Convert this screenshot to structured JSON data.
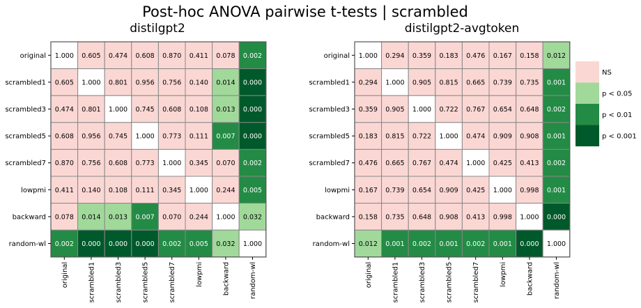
{
  "title": "Post-hoc ANOVA pairwise t-tests | scrambled",
  "chart_data": [
    {
      "type": "heatmap",
      "title": "distilgpt2",
      "rows": [
        "original",
        "scrambled1",
        "scrambled3",
        "scrambled5",
        "scrambled7",
        "lowpmi",
        "backward",
        "random-wl"
      ],
      "cols": [
        "original",
        "scrambled1",
        "scrambled3",
        "scrambled5",
        "scrambled7",
        "lowpmi",
        "backward",
        "random-wl"
      ],
      "values": [
        [
          1.0,
          0.605,
          0.474,
          0.608,
          0.87,
          0.411,
          0.078,
          0.002
        ],
        [
          0.605,
          1.0,
          0.801,
          0.956,
          0.756,
          0.14,
          0.014,
          0.0
        ],
        [
          0.474,
          0.801,
          1.0,
          0.745,
          0.608,
          0.108,
          0.013,
          0.0
        ],
        [
          0.608,
          0.956,
          0.745,
          1.0,
          0.773,
          0.111,
          0.007,
          0.0
        ],
        [
          0.87,
          0.756,
          0.608,
          0.773,
          1.0,
          0.345,
          0.07,
          0.002
        ],
        [
          0.411,
          0.14,
          0.108,
          0.111,
          0.345,
          1.0,
          0.244,
          0.005
        ],
        [
          0.078,
          0.014,
          0.013,
          0.007,
          0.07,
          0.244,
          1.0,
          0.032
        ],
        [
          0.002,
          0.0,
          0.0,
          0.0,
          0.002,
          0.005,
          0.032,
          1.0
        ]
      ],
      "labels": [
        [
          "1.000",
          "0.605",
          "0.474",
          "0.608",
          "0.870",
          "0.411",
          "0.078",
          "0.002"
        ],
        [
          "0.605",
          "1.000",
          "0.801",
          "0.956",
          "0.756",
          "0.140",
          "0.014",
          "0.000"
        ],
        [
          "0.474",
          "0.801",
          "1.000",
          "0.745",
          "0.608",
          "0.108",
          "0.013",
          "0.000"
        ],
        [
          "0.608",
          "0.956",
          "0.745",
          "1.000",
          "0.773",
          "0.111",
          "0.007",
          "0.000"
        ],
        [
          "0.870",
          "0.756",
          "0.608",
          "0.773",
          "1.000",
          "0.345",
          "0.070",
          "0.002"
        ],
        [
          "0.411",
          "0.140",
          "0.108",
          "0.111",
          "0.345",
          "1.000",
          "0.244",
          "0.005"
        ],
        [
          "0.078",
          "0.014",
          "0.013",
          "0.007",
          "0.070",
          "0.244",
          "1.000",
          "0.032"
        ],
        [
          "0.002",
          "0.000",
          "0.000",
          "0.000",
          "0.002",
          "0.005",
          "0.032",
          "1.000"
        ]
      ]
    },
    {
      "type": "heatmap",
      "title": "distilgpt2-avgtoken",
      "rows": [
        "original",
        "scrambled1",
        "scrambled3",
        "scrambled5",
        "scrambled7",
        "lowpmi",
        "backward",
        "random-wl"
      ],
      "cols": [
        "original",
        "scrambled1",
        "scrambled3",
        "scrambled5",
        "scrambled7",
        "lowpmi",
        "backward",
        "random-wl"
      ],
      "values": [
        [
          1.0,
          0.294,
          0.359,
          0.183,
          0.476,
          0.167,
          0.158,
          0.012
        ],
        [
          0.294,
          1.0,
          0.905,
          0.815,
          0.665,
          0.739,
          0.735,
          0.001
        ],
        [
          0.359,
          0.905,
          1.0,
          0.722,
          0.767,
          0.654,
          0.648,
          0.002
        ],
        [
          0.183,
          0.815,
          0.722,
          1.0,
          0.474,
          0.909,
          0.908,
          0.001
        ],
        [
          0.476,
          0.665,
          0.767,
          0.474,
          1.0,
          0.425,
          0.413,
          0.002
        ],
        [
          0.167,
          0.739,
          0.654,
          0.909,
          0.425,
          1.0,
          0.998,
          0.001
        ],
        [
          0.158,
          0.735,
          0.648,
          0.908,
          0.413,
          0.998,
          1.0,
          0.0
        ],
        [
          0.012,
          0.001,
          0.002,
          0.001,
          0.002,
          0.001,
          0.0,
          1.0
        ]
      ],
      "labels": [
        [
          "1.000",
          "0.294",
          "0.359",
          "0.183",
          "0.476",
          "0.167",
          "0.158",
          "0.012"
        ],
        [
          "0.294",
          "1.000",
          "0.905",
          "0.815",
          "0.665",
          "0.739",
          "0.735",
          "0.001"
        ],
        [
          "0.359",
          "0.905",
          "1.000",
          "0.722",
          "0.767",
          "0.654",
          "0.648",
          "0.002"
        ],
        [
          "0.183",
          "0.815",
          "0.722",
          "1.000",
          "0.474",
          "0.909",
          "0.908",
          "0.001"
        ],
        [
          "0.476",
          "0.665",
          "0.767",
          "0.474",
          "1.000",
          "0.425",
          "0.413",
          "0.002"
        ],
        [
          "0.167",
          "0.739",
          "0.654",
          "0.909",
          "0.425",
          "1.000",
          "0.998",
          "0.001"
        ],
        [
          "0.158",
          "0.735",
          "0.648",
          "0.908",
          "0.413",
          "0.998",
          "1.000",
          "0.000"
        ],
        [
          "0.012",
          "0.001",
          "0.002",
          "0.001",
          "0.002",
          "0.001",
          "0.000",
          "1.000"
        ]
      ]
    }
  ],
  "legend": {
    "items": [
      {
        "label": "NS",
        "color": "#fbd7d4"
      },
      {
        "label": "p < 0.05",
        "color": "#a1d99b"
      },
      {
        "label": "p < 0.01",
        "color": "#238b45"
      },
      {
        "label": "p < 0.001",
        "color": "#00592a"
      }
    ],
    "diagonal_color": "#ffffff",
    "border_color": "#888888"
  }
}
